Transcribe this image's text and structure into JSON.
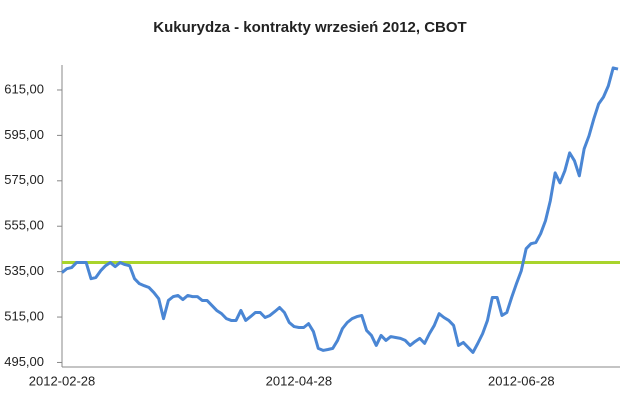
{
  "chart_data": {
    "type": "line",
    "title": "Kukurydza - kontrakty wrzesień 2012, CBOT",
    "categories": [
      "2012-02-28",
      null,
      null,
      null,
      null,
      null,
      null,
      null,
      null,
      null,
      null,
      null,
      null,
      null,
      null,
      null,
      null,
      null,
      null,
      null,
      null,
      null,
      null,
      null,
      null,
      null,
      null,
      null,
      null,
      null,
      null,
      null,
      null,
      null,
      null,
      null,
      null,
      null,
      null,
      null,
      null,
      null,
      null,
      null,
      null,
      null,
      null,
      null,
      null,
      "2012-04-28",
      null,
      null,
      null,
      null,
      null,
      null,
      null,
      null,
      null,
      null,
      null,
      null,
      null,
      null,
      null,
      null,
      null,
      null,
      null,
      null,
      null,
      null,
      null,
      null,
      null,
      null,
      null,
      null,
      null,
      null,
      null,
      null,
      null,
      null,
      null,
      null,
      null,
      null,
      null,
      null,
      null,
      null,
      null,
      null,
      null,
      "2012-06-28",
      null,
      null,
      null,
      null,
      null,
      null,
      null,
      null,
      null,
      null,
      null,
      null,
      null,
      null,
      null,
      null,
      null,
      null,
      null,
      null
    ],
    "series": [
      {
        "color": "#4a86d4",
        "values": [
          534.6,
          536.3,
          536.8,
          539,
          539,
          539,
          531.9,
          532.4,
          535.4,
          537.6,
          539,
          537.2,
          539,
          538.1,
          537.6,
          531.9,
          529.7,
          528.8,
          528,
          525.8,
          523.1,
          514.3,
          522.3,
          524,
          524.5,
          522.7,
          524.5,
          524,
          524,
          522.3,
          522.3,
          520.1,
          517.9,
          516.5,
          514.3,
          513.5,
          513.5,
          517.9,
          513.5,
          515.2,
          517,
          517,
          514.8,
          515.7,
          517.4,
          519.2,
          517,
          512.6,
          510.8,
          510.4,
          510.4,
          512.1,
          508.6,
          501.2,
          500.3,
          500.7,
          501.2,
          504.7,
          509.9,
          512.6,
          514.3,
          515.2,
          515.7,
          509.1,
          506.9,
          502.5,
          506.9,
          504.7,
          506.4,
          506,
          505.6,
          504.7,
          502.5,
          504.2,
          505.6,
          503.4,
          507.7,
          511.3,
          516.5,
          514.8,
          513.5,
          511.3,
          502.5,
          503.8,
          501.6,
          499.4,
          503.4,
          507.7,
          513.5,
          523.6,
          523.6,
          515.7,
          517,
          523.6,
          529.7,
          535.4,
          545.1,
          547.3,
          547.8,
          551.7,
          557.4,
          566.2,
          578.5,
          574.1,
          579.4,
          587.3,
          583.8,
          577.2,
          589.1,
          594.8,
          602.3,
          608.9,
          611.9,
          616.8,
          624.7,
          624.2
        ]
      }
    ],
    "reference_line": {
      "value": 539,
      "color": "#a9d42c"
    },
    "ylim": [
      493,
      626
    ],
    "yticks": [
      {
        "value": 495,
        "label": "495,00"
      },
      {
        "value": 515,
        "label": "515,00"
      },
      {
        "value": 535,
        "label": "535,00"
      },
      {
        "value": 555,
        "label": "555,00"
      },
      {
        "value": 575,
        "label": "575,00"
      },
      {
        "value": 595,
        "label": "595,00"
      },
      {
        "value": 615,
        "label": "615,00"
      }
    ]
  }
}
